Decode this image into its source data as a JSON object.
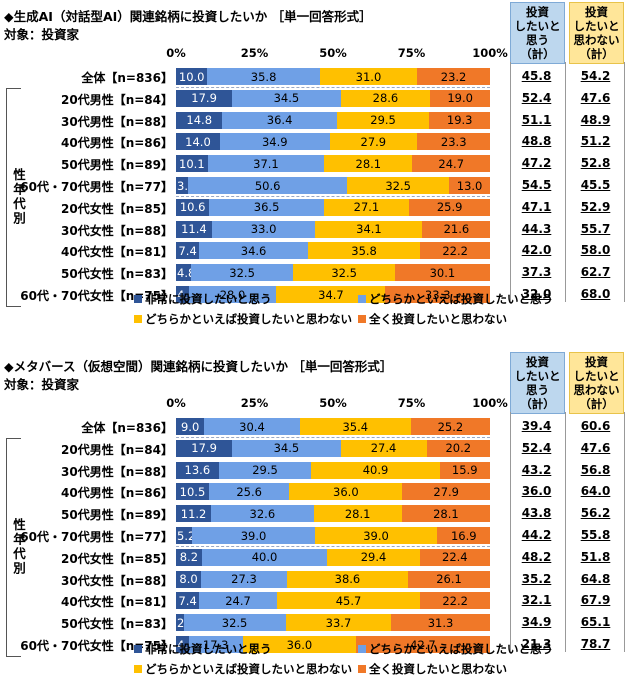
{
  "chart_data": [
    {
      "type": "bar",
      "orientation": "horizontal",
      "stacked": true,
      "title": "◆生成AI（対話型AI）関連銘柄に投資したいか ［単一回答形式］",
      "subtitle": "対象：投資家",
      "xlim": [
        0,
        100
      ],
      "x_ticks": [
        "0%",
        "25%",
        "50%",
        "75%",
        "100%"
      ],
      "group_label": "性年代別",
      "categories": [
        "全体【n=836】",
        "20代男性【n=84】",
        "30代男性【n=88】",
        "40代男性【n=86】",
        "50代男性【n=89】",
        "60代・70代男性【n=77】",
        "20代女性【n=85】",
        "30代女性【n=88】",
        "40代女性【n=81】",
        "50代女性【n=83】",
        "60代・70代女性【n=75】"
      ],
      "series": [
        {
          "name": "非常に投資したいと思う",
          "values": [
            10.0,
            17.9,
            14.8,
            14.0,
            10.1,
            3.9,
            10.6,
            11.4,
            7.4,
            4.8,
            4.0
          ]
        },
        {
          "name": "どちらかといえば投資したいと思う",
          "values": [
            35.8,
            34.5,
            36.4,
            34.9,
            37.1,
            50.6,
            36.5,
            33.0,
            34.6,
            32.5,
            28.0
          ]
        },
        {
          "name": "どちらかといえば投資したいと思わない",
          "values": [
            31.0,
            28.6,
            29.5,
            27.9,
            28.1,
            32.5,
            27.1,
            34.1,
            35.8,
            32.5,
            34.7
          ]
        },
        {
          "name": "全く投資したいと思わない",
          "values": [
            23.2,
            19.0,
            19.3,
            23.3,
            24.7,
            13.0,
            25.9,
            21.6,
            22.2,
            30.1,
            33.3
          ]
        }
      ],
      "summary_columns": [
        {
          "header": [
            "投資",
            "したいと",
            "思う",
            "（計）"
          ],
          "values": [
            "45.8",
            "52.4",
            "51.1",
            "48.8",
            "47.2",
            "54.5",
            "47.1",
            "44.3",
            "42.0",
            "37.3",
            "32.0"
          ],
          "color": "#bdd7ee"
        },
        {
          "header": [
            "投資",
            "したいと",
            "思わない",
            "（計）"
          ],
          "values": [
            "54.2",
            "47.6",
            "48.9",
            "51.2",
            "52.8",
            "45.5",
            "52.9",
            "55.7",
            "58.0",
            "62.7",
            "68.0"
          ],
          "color": "#ffe699"
        }
      ],
      "legend_position": "bottom"
    },
    {
      "type": "bar",
      "orientation": "horizontal",
      "stacked": true,
      "title": "◆メタバース（仮想空間）関連銘柄に投資したいか ［単一回答形式］",
      "subtitle": "対象：投資家",
      "xlim": [
        0,
        100
      ],
      "x_ticks": [
        "0%",
        "25%",
        "50%",
        "75%",
        "100%"
      ],
      "group_label": "性年代別",
      "categories": [
        "全体【n=836】",
        "20代男性【n=84】",
        "30代男性【n=88】",
        "40代男性【n=86】",
        "50代男性【n=89】",
        "60代・70代男性【n=77】",
        "20代女性【n=85】",
        "30代女性【n=88】",
        "40代女性【n=81】",
        "50代女性【n=83】",
        "60代・70代女性【n=75】"
      ],
      "series": [
        {
          "name": "非常に投資したいと思う",
          "values": [
            9.0,
            17.9,
            13.6,
            10.5,
            11.2,
            5.2,
            8.2,
            8.0,
            7.4,
            2.4,
            4.0
          ]
        },
        {
          "name": "どちらかといえば投資したいと思う",
          "values": [
            30.4,
            34.5,
            29.5,
            25.6,
            32.6,
            39.0,
            40.0,
            27.3,
            24.7,
            32.5,
            17.3
          ]
        },
        {
          "name": "どちらかといえば投資したいと思わない",
          "values": [
            35.4,
            27.4,
            40.9,
            36.0,
            28.1,
            39.0,
            29.4,
            38.6,
            45.7,
            33.7,
            36.0
          ]
        },
        {
          "name": "全く投資したいと思わない",
          "values": [
            25.2,
            20.2,
            15.9,
            27.9,
            28.1,
            16.9,
            22.4,
            26.1,
            22.2,
            31.3,
            42.7
          ]
        }
      ],
      "summary_columns": [
        {
          "header": [
            "投資",
            "したいと",
            "思う",
            "（計）"
          ],
          "values": [
            "39.4",
            "52.4",
            "43.2",
            "36.0",
            "43.8",
            "44.2",
            "48.2",
            "35.2",
            "32.1",
            "34.9",
            "21.3"
          ],
          "color": "#bdd7ee"
        },
        {
          "header": [
            "投資",
            "したいと",
            "思わない",
            "（計）"
          ],
          "values": [
            "60.6",
            "47.6",
            "56.8",
            "64.0",
            "56.2",
            "55.8",
            "51.8",
            "64.8",
            "67.9",
            "65.1",
            "78.7"
          ],
          "color": "#ffe699"
        }
      ],
      "legend_position": "bottom"
    }
  ],
  "series_colors": [
    "#2f5597",
    "#6fa0e6",
    "#ffc000",
    "#f07828"
  ]
}
